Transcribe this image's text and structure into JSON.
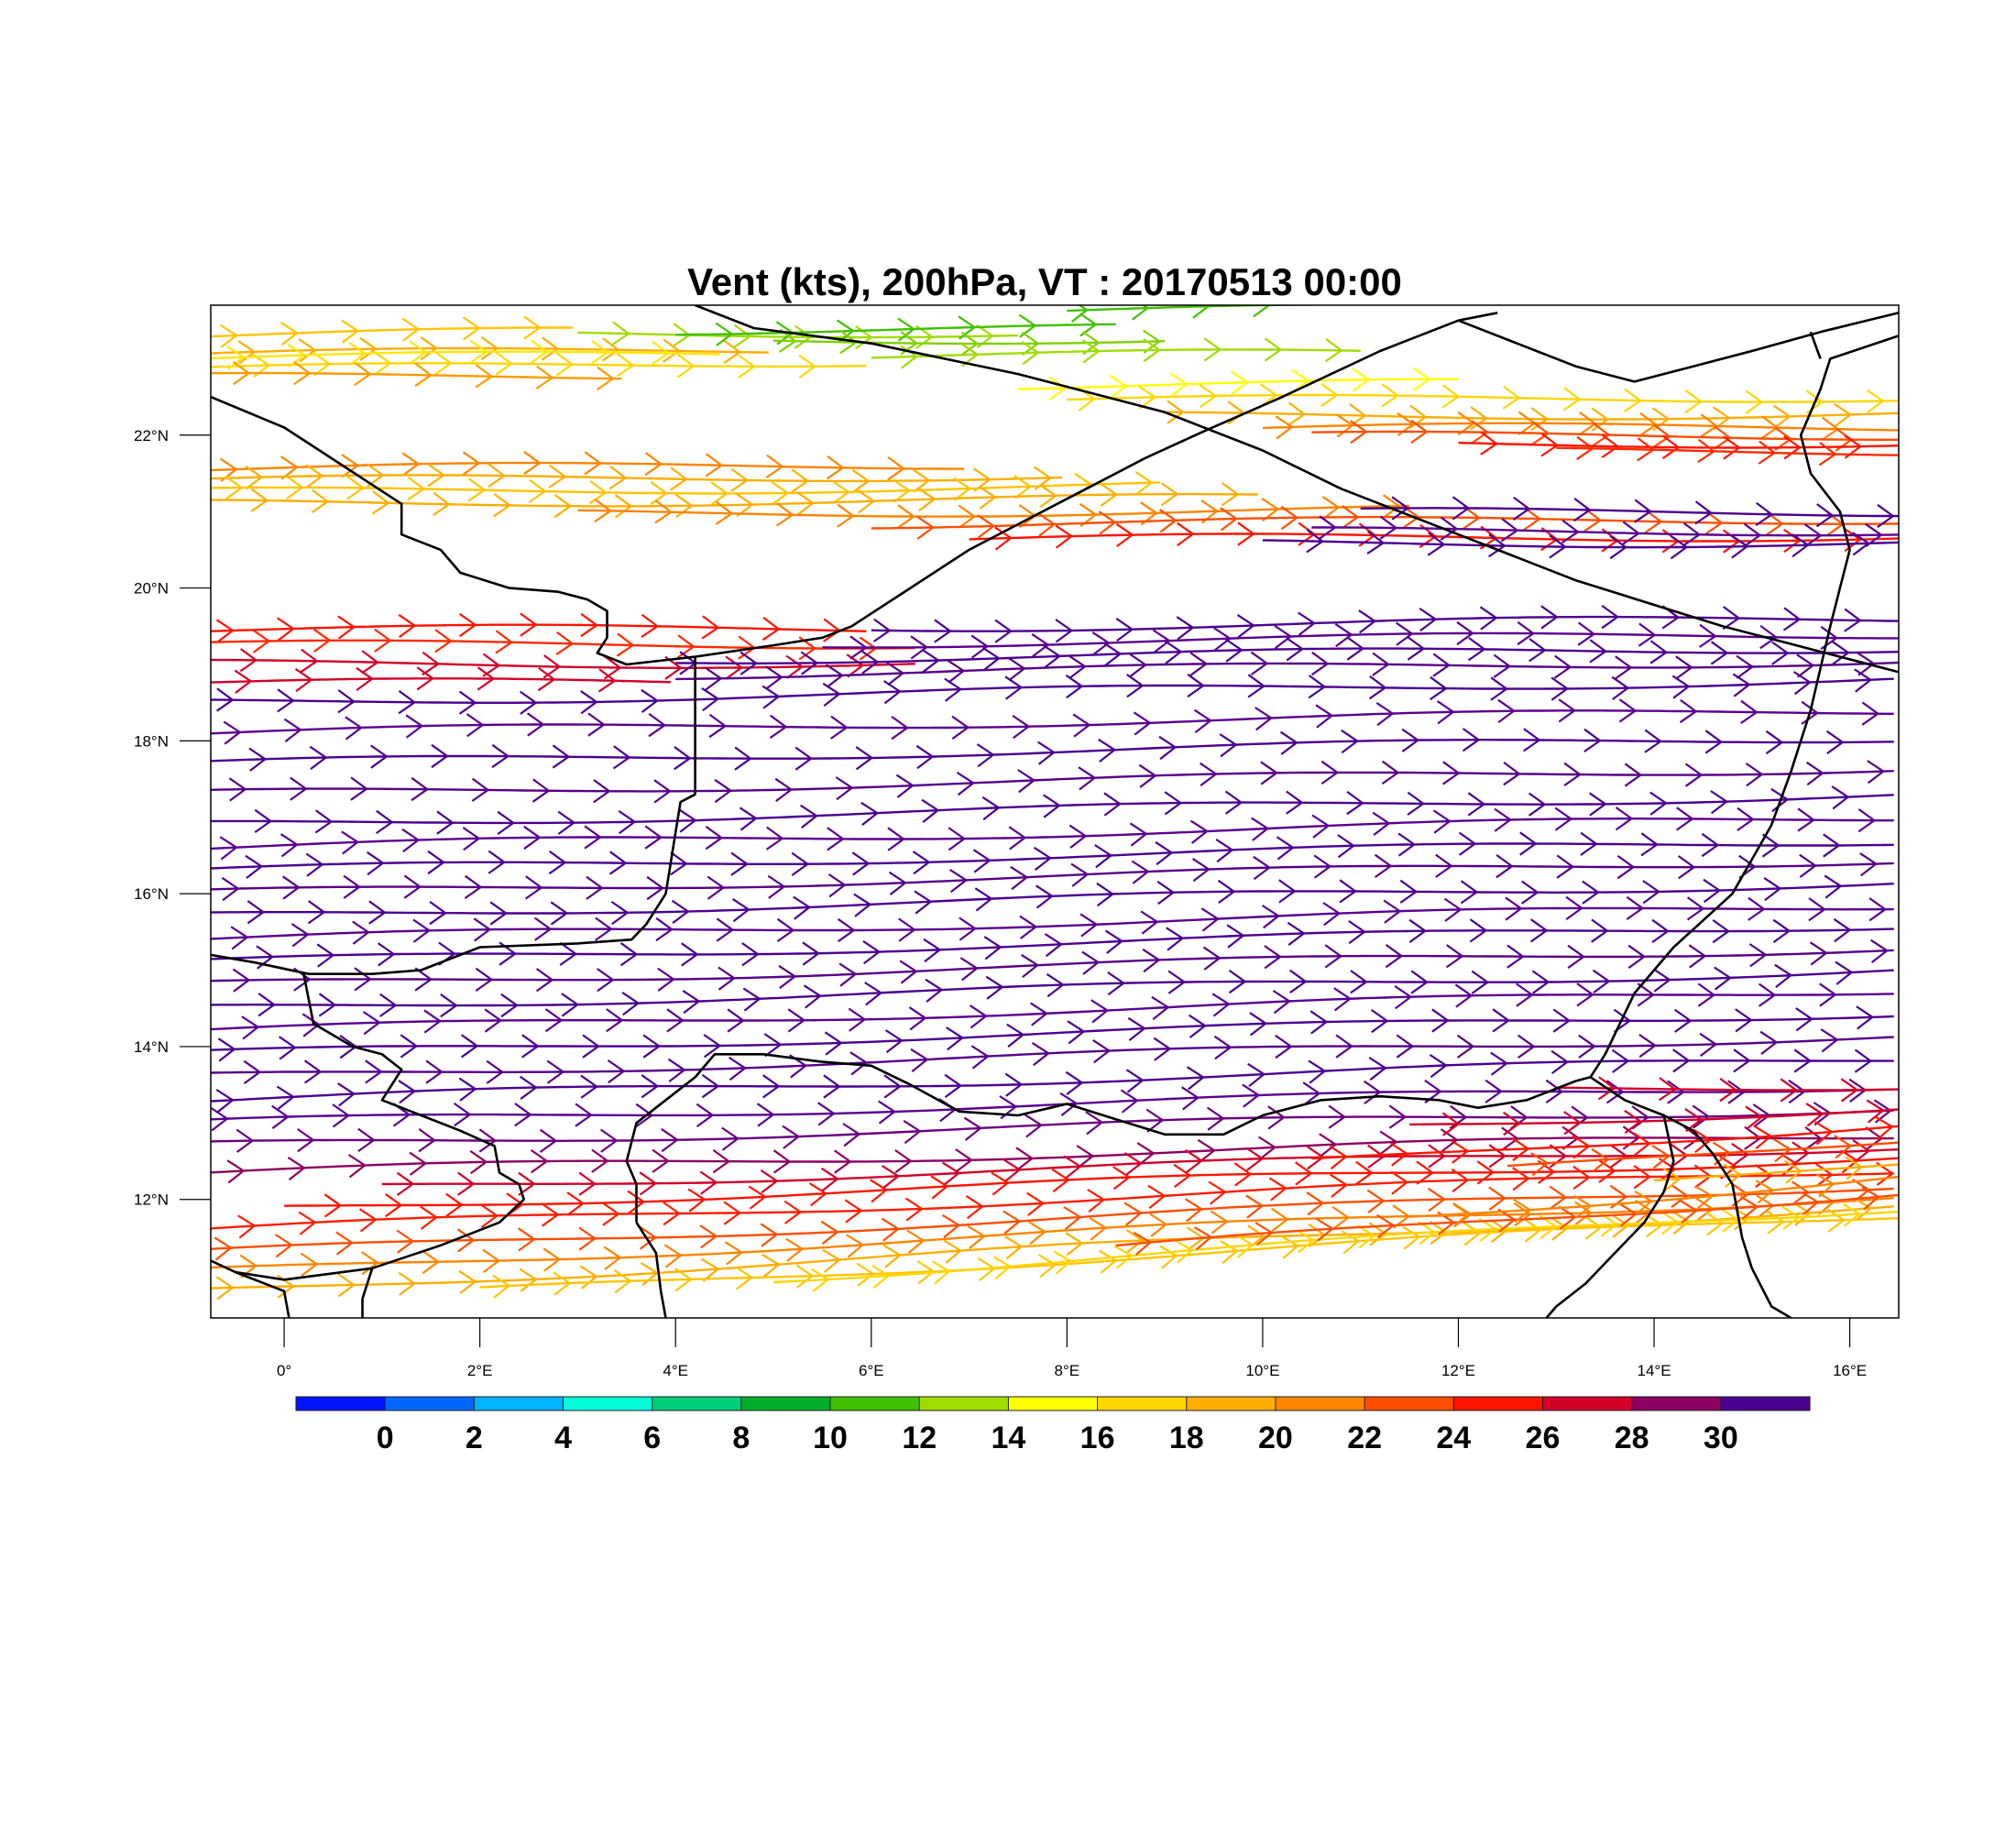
{
  "title": "Vent (kts), 200hPa, VT : 20170513  00:00",
  "map": {
    "lon_range": [
      -0.75,
      16.5
    ],
    "lat_range": [
      10.45,
      23.7
    ],
    "x_ticks": [
      {
        "lon": 0,
        "label": "0°"
      },
      {
        "lon": 2,
        "label": "2°E"
      },
      {
        "lon": 4,
        "label": "4°E"
      },
      {
        "lon": 6,
        "label": "6°E"
      },
      {
        "lon": 8,
        "label": "8°E"
      },
      {
        "lon": 10,
        "label": "10°E"
      },
      {
        "lon": 12,
        "label": "12°E"
      },
      {
        "lon": 14,
        "label": "14°E"
      },
      {
        "lon": 16,
        "label": "16°E"
      }
    ],
    "y_ticks": [
      {
        "lat": 12,
        "label": "12°N"
      },
      {
        "lat": 14,
        "label": "14°N"
      },
      {
        "lat": 16,
        "label": "16°N"
      },
      {
        "lat": 18,
        "label": "18°N"
      },
      {
        "lat": 20,
        "label": "20°N"
      },
      {
        "lat": 22,
        "label": "22°N"
      }
    ],
    "borders": [
      [
        [
          4.2,
          23.7
        ],
        [
          4.8,
          23.4
        ],
        [
          6.0,
          23.2
        ],
        [
          7.5,
          22.8
        ],
        [
          9.0,
          22.3
        ],
        [
          10.0,
          21.8
        ],
        [
          10.8,
          21.3
        ],
        [
          11.4,
          21.0
        ],
        [
          12.0,
          20.7
        ],
        [
          12.6,
          20.4
        ],
        [
          13.2,
          20.1
        ],
        [
          13.7,
          19.9
        ],
        [
          14.2,
          19.7
        ],
        [
          14.7,
          19.5
        ],
        [
          15.3,
          19.3
        ],
        [
          15.9,
          19.1
        ],
        [
          16.5,
          18.9
        ]
      ],
      [
        [
          -0.75,
          22.5
        ],
        [
          0.0,
          22.1
        ],
        [
          0.6,
          21.6
        ],
        [
          1.2,
          21.1
        ],
        [
          1.2,
          20.7
        ],
        [
          1.6,
          20.5
        ],
        [
          1.8,
          20.2
        ],
        [
          2.3,
          20.0
        ],
        [
          2.8,
          19.95
        ],
        [
          3.1,
          19.85
        ],
        [
          3.3,
          19.7
        ],
        [
          3.3,
          19.35
        ],
        [
          3.2,
          19.15
        ],
        [
          3.5,
          19.0
        ],
        [
          4.2,
          19.1
        ],
        [
          5.0,
          19.25
        ],
        [
          5.5,
          19.35
        ],
        [
          5.8,
          19.5
        ],
        [
          6.4,
          20.0
        ],
        [
          7.0,
          20.5
        ],
        [
          7.6,
          20.9
        ],
        [
          8.2,
          21.3
        ],
        [
          8.8,
          21.7
        ],
        [
          9.4,
          22.05
        ],
        [
          10.2,
          22.5
        ],
        [
          11.2,
          23.1
        ],
        [
          12.0,
          23.5
        ],
        [
          12.4,
          23.6
        ]
      ],
      [
        [
          4.2,
          19.1
        ],
        [
          4.2,
          17.3
        ],
        [
          4.05,
          17.2
        ],
        [
          4.0,
          16.8
        ],
        [
          3.9,
          16.0
        ],
        [
          3.7,
          15.6
        ],
        [
          3.55,
          15.4
        ],
        [
          3.0,
          15.35
        ],
        [
          2.0,
          15.3
        ],
        [
          1.4,
          15.0
        ],
        [
          0.9,
          14.95
        ],
        [
          0.25,
          14.95
        ],
        [
          -0.3,
          15.1
        ],
        [
          -0.75,
          15.2
        ]
      ],
      [
        [
          0.2,
          14.95
        ],
        [
          0.3,
          14.3
        ],
        [
          0.7,
          14.0
        ],
        [
          1.0,
          13.9
        ],
        [
          1.2,
          13.7
        ],
        [
          1.0,
          13.3
        ],
        [
          1.4,
          13.1
        ],
        [
          1.8,
          12.9
        ],
        [
          2.15,
          12.7
        ],
        [
          2.2,
          12.35
        ],
        [
          2.4,
          12.2
        ],
        [
          2.45,
          12.0
        ],
        [
          2.2,
          11.7
        ],
        [
          1.6,
          11.4
        ],
        [
          0.9,
          11.1
        ],
        [
          0.0,
          10.95
        ],
        [
          -0.5,
          11.05
        ],
        [
          -0.75,
          11.2
        ]
      ],
      [
        [
          3.6,
          11.7
        ],
        [
          3.6,
          12.2
        ],
        [
          3.5,
          12.5
        ],
        [
          3.6,
          13.0
        ],
        [
          3.9,
          13.3
        ],
        [
          4.2,
          13.6
        ],
        [
          4.4,
          13.9
        ],
        [
          4.9,
          13.9
        ],
        [
          5.5,
          13.8
        ],
        [
          6.0,
          13.75
        ],
        [
          6.4,
          13.5
        ],
        [
          6.9,
          13.15
        ],
        [
          7.5,
          13.1
        ],
        [
          8.0,
          13.25
        ],
        [
          8.5,
          13.05
        ],
        [
          9.0,
          12.85
        ],
        [
          9.6,
          12.85
        ],
        [
          10.0,
          13.1
        ],
        [
          10.6,
          13.3
        ],
        [
          11.2,
          13.35
        ],
        [
          11.8,
          13.3
        ],
        [
          12.2,
          13.2
        ],
        [
          12.7,
          13.3
        ],
        [
          13.2,
          13.55
        ],
        [
          13.35,
          13.6
        ]
      ],
      [
        [
          13.35,
          13.6
        ],
        [
          13.5,
          13.9
        ],
        [
          13.8,
          14.7
        ],
        [
          14.2,
          15.3
        ],
        [
          14.8,
          16.0
        ],
        [
          15.2,
          16.9
        ],
        [
          15.4,
          17.6
        ],
        [
          15.6,
          18.4
        ],
        [
          15.8,
          19.5
        ],
        [
          15.9,
          20.0
        ],
        [
          16.0,
          20.5
        ],
        [
          15.9,
          21.0
        ],
        [
          15.6,
          21.5
        ],
        [
          15.5,
          22.0
        ],
        [
          15.7,
          22.6
        ],
        [
          15.8,
          23.0
        ],
        [
          16.5,
          23.3
        ]
      ],
      [
        [
          12.0,
          23.5
        ],
        [
          12.6,
          23.2
        ],
        [
          13.2,
          22.9
        ],
        [
          13.8,
          22.7
        ],
        [
          14.4,
          22.9
        ],
        [
          15.0,
          23.1
        ],
        [
          15.7,
          23.35
        ],
        [
          16.5,
          23.6
        ]
      ],
      [
        [
          15.7,
          23.0
        ],
        [
          15.6,
          23.35
        ]
      ],
      [
        [
          13.35,
          13.6
        ],
        [
          13.7,
          13.3
        ],
        [
          14.1,
          13.1
        ],
        [
          14.4,
          12.9
        ],
        [
          14.6,
          12.6
        ],
        [
          14.8,
          12.2
        ],
        [
          14.9,
          11.5
        ],
        [
          15.0,
          11.1
        ],
        [
          15.2,
          10.6
        ],
        [
          15.4,
          10.45
        ]
      ],
      [
        [
          14.1,
          13.1
        ],
        [
          14.2,
          12.5
        ],
        [
          14.1,
          12.1
        ],
        [
          13.9,
          11.7
        ],
        [
          13.6,
          11.3
        ],
        [
          13.3,
          10.9
        ],
        [
          13.0,
          10.6
        ],
        [
          12.9,
          10.45
        ]
      ],
      [
        [
          3.6,
          11.7
        ],
        [
          3.8,
          11.3
        ],
        [
          3.85,
          10.8
        ],
        [
          3.9,
          10.45
        ]
      ],
      [
        [
          0.9,
          11.1
        ],
        [
          0.8,
          10.7
        ],
        [
          0.8,
          10.45
        ]
      ],
      [
        [
          -0.5,
          11.05
        ],
        [
          0.0,
          10.8
        ],
        [
          0.05,
          10.45
        ]
      ]
    ]
  },
  "colorbar": {
    "labels": [
      "0",
      "2",
      "4",
      "6",
      "8",
      "10",
      "12",
      "14",
      "16",
      "18",
      "20",
      "22",
      "24",
      "26",
      "28",
      "30"
    ],
    "colors": [
      "#0013ff",
      "#0066ff",
      "#00b4ff",
      "#00ffd9",
      "#00cc7a",
      "#00ad29",
      "#40c000",
      "#a0dc00",
      "#ffff00",
      "#ffd600",
      "#ffae00",
      "#ff8400",
      "#ff4e00",
      "#ff1400",
      "#d20028",
      "#8b0060",
      "#4b0090"
    ]
  },
  "streamlines": [
    {
      "lat": 23.3,
      "amp": 0.25,
      "phase": 0.3,
      "lon_end": 3.0,
      "color": "#ffc400"
    },
    {
      "lat": 23.05,
      "amp": 0.2,
      "phase": 0.8,
      "lon_end": 5.0,
      "color": "#ffae00"
    },
    {
      "lat": 22.85,
      "amp": 0.3,
      "phase": 1.2,
      "lon_end": 6.0,
      "color": "#ffd600"
    },
    {
      "lat": 23.0,
      "amp": 0.2,
      "phase": 0.5,
      "lon_end": 4.5,
      "color": "#ffe600"
    },
    {
      "lat": 22.75,
      "amp": 0.15,
      "phase": 2.0,
      "lon_end": 3.5,
      "color": "#ff9a00"
    },
    {
      "lat": 23.3,
      "lon_start": 3.0,
      "lon_end": 7.5,
      "amp": 0.1,
      "phase": 1.0,
      "color": "#a0dc00"
    },
    {
      "lat": 23.35,
      "lon_start": 4.0,
      "lon_end": 8.5,
      "amp": 0.08,
      "phase": 2.5,
      "color": "#40c000"
    },
    {
      "lat": 23.2,
      "lon_start": 5.0,
      "lon_end": 9.0,
      "amp": 0.12,
      "phase": 0.2,
      "color": "#80d000"
    },
    {
      "lat": 23.55,
      "lon_start": 8.0,
      "lon_end": 10.5,
      "amp": 0.15,
      "phase": 1.5,
      "color": "#40c000"
    },
    {
      "lat": 23.0,
      "lon_start": 6.0,
      "lon_end": 11.0,
      "amp": 0.1,
      "phase": 2.2,
      "color": "#a0dc00"
    },
    {
      "lat": 22.6,
      "lon_start": 7.5,
      "lon_end": 12.0,
      "amp": 0.1,
      "phase": 0.9,
      "color": "#ffff00"
    },
    {
      "lat": 22.4,
      "lon_start": 8.0,
      "lon_end": 16.5,
      "amp": 0.1,
      "phase": 1.7,
      "color": "#ffd600"
    },
    {
      "lat": 22.2,
      "lon_start": 9.0,
      "lon_end": 16.5,
      "amp": 0.08,
      "phase": 2.8,
      "color": "#ffae00"
    },
    {
      "lat": 22.05,
      "lon_start": 10.0,
      "lon_end": 16.5,
      "amp": 0.06,
      "phase": 0.4,
      "color": "#ff8400"
    },
    {
      "lat": 21.95,
      "lon_start": 10.5,
      "lon_end": 16.5,
      "amp": 0.05,
      "phase": 1.1,
      "color": "#ff4e00"
    },
    {
      "lat": 21.85,
      "lon_start": 12.0,
      "lon_end": 16.5,
      "amp": 0.05,
      "phase": 2.0,
      "color": "#ff1400"
    },
    {
      "lat": 21.75,
      "lon_start": 13.0,
      "lon_end": 16.5,
      "amp": 0.04,
      "phase": 0.6,
      "color": "#ff2a00"
    },
    {
      "lat": 21.55,
      "lon_end": 7.0,
      "amp": 0.15,
      "phase": 0.3,
      "color": "#ff8400"
    },
    {
      "lat": 21.4,
      "lon_end": 8.0,
      "amp": 0.15,
      "phase": 1.0,
      "color": "#ffae00"
    },
    {
      "lat": 21.25,
      "lon_end": 9.0,
      "amp": 0.15,
      "phase": 1.8,
      "color": "#ffc400"
    },
    {
      "lat": 21.1,
      "lon_end": 10.0,
      "amp": 0.12,
      "phase": 2.5,
      "color": "#ffae00"
    },
    {
      "lat": 20.95,
      "lon_start": 3.0,
      "lon_end": 11.5,
      "amp": 0.1,
      "phase": 0.5,
      "color": "#ff8400"
    },
    {
      "lat": 20.8,
      "lon_start": 6.0,
      "lon_end": 16.5,
      "amp": 0.1,
      "phase": 1.3,
      "color": "#ff4e00"
    },
    {
      "lat": 20.6,
      "lon_start": 7.0,
      "lon_end": 16.5,
      "amp": 0.08,
      "phase": 2.1,
      "color": "#ff1400"
    },
    {
      "lat": 20.95,
      "lon_start": 11.0,
      "lon_end": 16.5,
      "amp": 0.05,
      "phase": 0.9,
      "color": "#4b0090"
    },
    {
      "lat": 20.7,
      "lon_start": 10.5,
      "lon_end": 16.5,
      "amp": 0.05,
      "phase": 1.6,
      "color": "#5a0090"
    },
    {
      "lat": 20.55,
      "lon_start": 10.0,
      "lon_end": 16.5,
      "amp": 0.05,
      "phase": 2.6,
      "color": "#4b0090"
    },
    {
      "lat": 19.45,
      "lon_end": 6.0,
      "amp": 0.05,
      "phase": 0.2,
      "color": "#ff1400"
    },
    {
      "lat": 19.25,
      "lon_end": 6.5,
      "amp": 0.05,
      "phase": 1.2,
      "color": "#ff2a00"
    },
    {
      "lat": 19.0,
      "lon_end": 6.5,
      "amp": 0.05,
      "phase": 2.2,
      "color": "#d20028"
    },
    {
      "lat": 18.75,
      "lon_end": 4.0,
      "amp": 0.05,
      "phase": 0.7,
      "color": "#d20028"
    },
    {
      "lat": 19.4,
      "lon_start": 6.0,
      "lon_end": 16.5,
      "amp": 0.2,
      "phase": 0.1,
      "color": "#4b0090"
    },
    {
      "lat": 19.2,
      "lon_start": 5.5,
      "lon_end": 16.5,
      "amp": 0.2,
      "phase": 0.8,
      "color": "#5a0090"
    },
    {
      "lat": 19.0,
      "lon_start": 4.0,
      "lon_end": 16.5,
      "amp": 0.22,
      "phase": 1.5,
      "color": "#4b0090"
    },
    {
      "lat": 18.8,
      "lon_start": 4.0,
      "lon_end": 16.5,
      "amp": 0.25,
      "phase": 2.2,
      "color": "#560088"
    },
    {
      "lat": 18.5,
      "amp": 0.3,
      "phase": 2.9,
      "color": "#4b0090"
    },
    {
      "lat": 18.1,
      "amp": 0.3,
      "phase": 0.4,
      "color": "#5a0090"
    },
    {
      "lat": 17.7,
      "amp": 0.35,
      "phase": 1.1,
      "color": "#4b0090"
    },
    {
      "lat": 17.3,
      "amp": 0.35,
      "phase": 1.9,
      "color": "#560088"
    },
    {
      "lat": 16.9,
      "amp": 0.4,
      "phase": 2.6,
      "color": "#4b0090"
    },
    {
      "lat": 16.6,
      "amp": 0.4,
      "phase": 0.3,
      "color": "#5a0090"
    },
    {
      "lat": 16.3,
      "amp": 0.4,
      "phase": 1.0,
      "color": "#4b0090"
    },
    {
      "lat": 16.0,
      "amp": 0.45,
      "phase": 1.7,
      "color": "#560088"
    },
    {
      "lat": 15.7,
      "amp": 0.45,
      "phase": 2.4,
      "color": "#4b0090"
    },
    {
      "lat": 15.4,
      "amp": 0.45,
      "phase": 0.6,
      "color": "#5a0090"
    },
    {
      "lat": 15.1,
      "amp": 0.5,
      "phase": 1.3,
      "color": "#4b0090"
    },
    {
      "lat": 14.8,
      "amp": 0.5,
      "phase": 2.0,
      "color": "#560088"
    },
    {
      "lat": 14.5,
      "amp": 0.5,
      "phase": 2.7,
      "color": "#4b0090"
    },
    {
      "lat": 14.2,
      "amp": 0.55,
      "phase": 0.9,
      "color": "#5a0090"
    },
    {
      "lat": 13.9,
      "amp": 0.55,
      "phase": 1.6,
      "color": "#4b0090"
    },
    {
      "lat": 13.6,
      "amp": 0.55,
      "phase": 2.3,
      "color": "#560088"
    },
    {
      "lat": 13.3,
      "amp": 0.55,
      "phase": 0.2,
      "color": "#4b0090"
    },
    {
      "lat": 13.0,
      "amp": 0.5,
      "phase": 1.4,
      "color": "#5a0090"
    },
    {
      "lat": 12.7,
      "amp": 0.5,
      "phase": 2.1,
      "color": "#6a0080"
    },
    {
      "lat": 12.35,
      "amp": 0.5,
      "phase": 0.5,
      "color": "#8b0060"
    },
    {
      "lat": 12.1,
      "lon_start": 1.0,
      "amp": 0.6,
      "phase": 1.8,
      "color": "#d20028"
    },
    {
      "lat": 11.85,
      "lon_start": 0.0,
      "amp": 0.7,
      "phase": 2.5,
      "color": "#ff1400"
    },
    {
      "lat": 11.6,
      "amp": 0.8,
      "phase": 0.8,
      "color": "#ff1e00"
    },
    {
      "lat": 11.3,
      "amp": 0.9,
      "phase": 1.5,
      "color": "#ff4e00"
    },
    {
      "lat": 11.05,
      "amp": 1.0,
      "phase": 2.2,
      "color": "#ff8400"
    },
    {
      "lat": 10.8,
      "amp": 1.1,
      "phase": 2.9,
      "color": "#ffae00"
    },
    {
      "lat": 10.6,
      "lon_start": 2.0,
      "amp": 1.2,
      "phase": 0.4,
      "color": "#ffc400"
    },
    {
      "lat": 10.5,
      "lon_start": 5.0,
      "amp": 1.4,
      "phase": 1.1,
      "color": "#ffd600"
    },
    {
      "lat": 10.5,
      "lon_start": 8.5,
      "amp": 1.6,
      "phase": 1.9,
      "color": "#ff4e00"
    },
    {
      "lat": 10.5,
      "lon_start": 11.5,
      "amp": 1.8,
      "phase": 2.6,
      "color": "#ff8400"
    },
    {
      "lat": 10.5,
      "lon_start": 14.0,
      "amp": 2.0,
      "phase": 0.3,
      "color": "#ffae00"
    },
    {
      "lat": 11.0,
      "lon_start": 12.5,
      "amp": 1.8,
      "phase": 0.7,
      "color": "#ff4e00"
    },
    {
      "lat": 11.5,
      "lon_start": 10.5,
      "amp": 1.5,
      "phase": 1.9,
      "color": "#ff1400"
    },
    {
      "lat": 12.4,
      "lon_start": 11.5,
      "amp": 0.8,
      "phase": 2.3,
      "color": "#d20028"
    },
    {
      "lat": 13.2,
      "lon_start": 13.0,
      "amp": 0.3,
      "phase": 1.2,
      "color": "#d20028"
    }
  ]
}
